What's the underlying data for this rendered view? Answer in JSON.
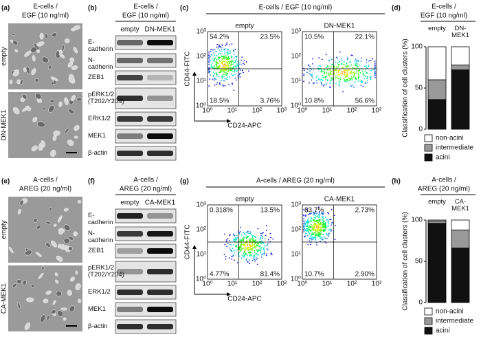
{
  "micrographs": [
    {
      "label": "(a)",
      "title_lines": [
        "E-cells /",
        "EGF (10 ng/ml)"
      ],
      "rows": [
        "empty",
        "DN-MEK1"
      ]
    },
    {
      "label": "(e)",
      "title_lines": [
        "A-cells /",
        "AREG (20 ng/ml)"
      ],
      "rows": [
        "empty",
        "CA-MEK1"
      ]
    }
  ],
  "blots": [
    {
      "label": "(b)",
      "title_lines": [
        "E-cells /",
        "EGF (10 ng/ml)"
      ],
      "lanes": [
        "empty",
        "DN-MEK1"
      ],
      "proteins": [
        "E-cadherin",
        "N-cadherin",
        "ZEB1",
        "pERK1/2 (T202/Y204)",
        "ERK1/2",
        "MEK1",
        "β-actin"
      ]
    },
    {
      "label": "(f)",
      "title_lines": [
        "A-cells /",
        "AREG (20 ng/ml)"
      ],
      "lanes": [
        "empty",
        "CA-MEK1"
      ],
      "proteins": [
        "E-cadherin",
        "N-cadherin",
        "ZEB1",
        "pERK1/2 (T202/Y204)",
        "ERK1/2",
        "MEK1",
        "β-actin"
      ]
    }
  ],
  "flow": [
    {
      "label": "(c)",
      "title": "E-cells / EGF (10 ng/ml)",
      "ylabel": "CD44-FITC",
      "xlabel": "CD24-APC",
      "ticks": [
        "10⁰",
        "10¹",
        "10²",
        "10³"
      ],
      "plots": [
        {
          "name": "empty",
          "quadrants": [
            "54.2%",
            "23.5%",
            "18.5%",
            "3.76%"
          ]
        },
        {
          "name": "DN-MEK1",
          "quadrants": [
            "10.5%",
            "22.1%",
            "10.8%",
            "56.6%"
          ]
        }
      ]
    },
    {
      "label": "(g)",
      "title": "A-cells / AREG (20 ng/ml)",
      "ylabel": "CD44-FITC",
      "xlabel": "CD24-APC",
      "ticks": [
        "10⁰",
        "10¹",
        "10²",
        "10³"
      ],
      "plots": [
        {
          "name": "empty",
          "quadrants": [
            "0.318%",
            "13.5%",
            "4.77%",
            "81.4%"
          ]
        },
        {
          "name": "CA-MEK1",
          "quadrants": [
            "83.7%",
            "2.73%",
            "10.7%",
            "2.90%"
          ]
        }
      ]
    }
  ],
  "chart_data": [
    {
      "type": "bar",
      "stacked": true,
      "label": "(d)",
      "title_lines": [
        "E-cells /",
        "EGF (10 ng/ml)"
      ],
      "ylabel": "Classification of cell clusters (%)",
      "categories": [
        "empty",
        "DN-MEK1"
      ],
      "ylim": [
        0,
        100
      ],
      "yticks": [
        0,
        50,
        100
      ],
      "series": [
        {
          "name": "acini",
          "color": "#111111",
          "values": [
            36,
            72
          ]
        },
        {
          "name": "intermediate",
          "color": "#999999",
          "values": [
            24,
            6
          ]
        },
        {
          "name": "non-acini",
          "color": "#ffffff",
          "values": [
            40,
            22
          ]
        }
      ]
    },
    {
      "type": "bar",
      "stacked": true,
      "label": "(h)",
      "title_lines": [
        "A-cells /",
        "AREG (20 ng/ml)"
      ],
      "ylabel": "Classification of cell clusters (%)",
      "categories": [
        "empty",
        "CA-MEK1"
      ],
      "ylim": [
        0,
        100
      ],
      "yticks": [
        0,
        50,
        100
      ],
      "series": [
        {
          "name": "acini",
          "color": "#111111",
          "values": [
            96,
            66
          ]
        },
        {
          "name": "intermediate",
          "color": "#999999",
          "values": [
            3,
            22
          ]
        },
        {
          "name": "non-acini",
          "color": "#ffffff",
          "values": [
            1,
            12
          ]
        }
      ]
    }
  ]
}
